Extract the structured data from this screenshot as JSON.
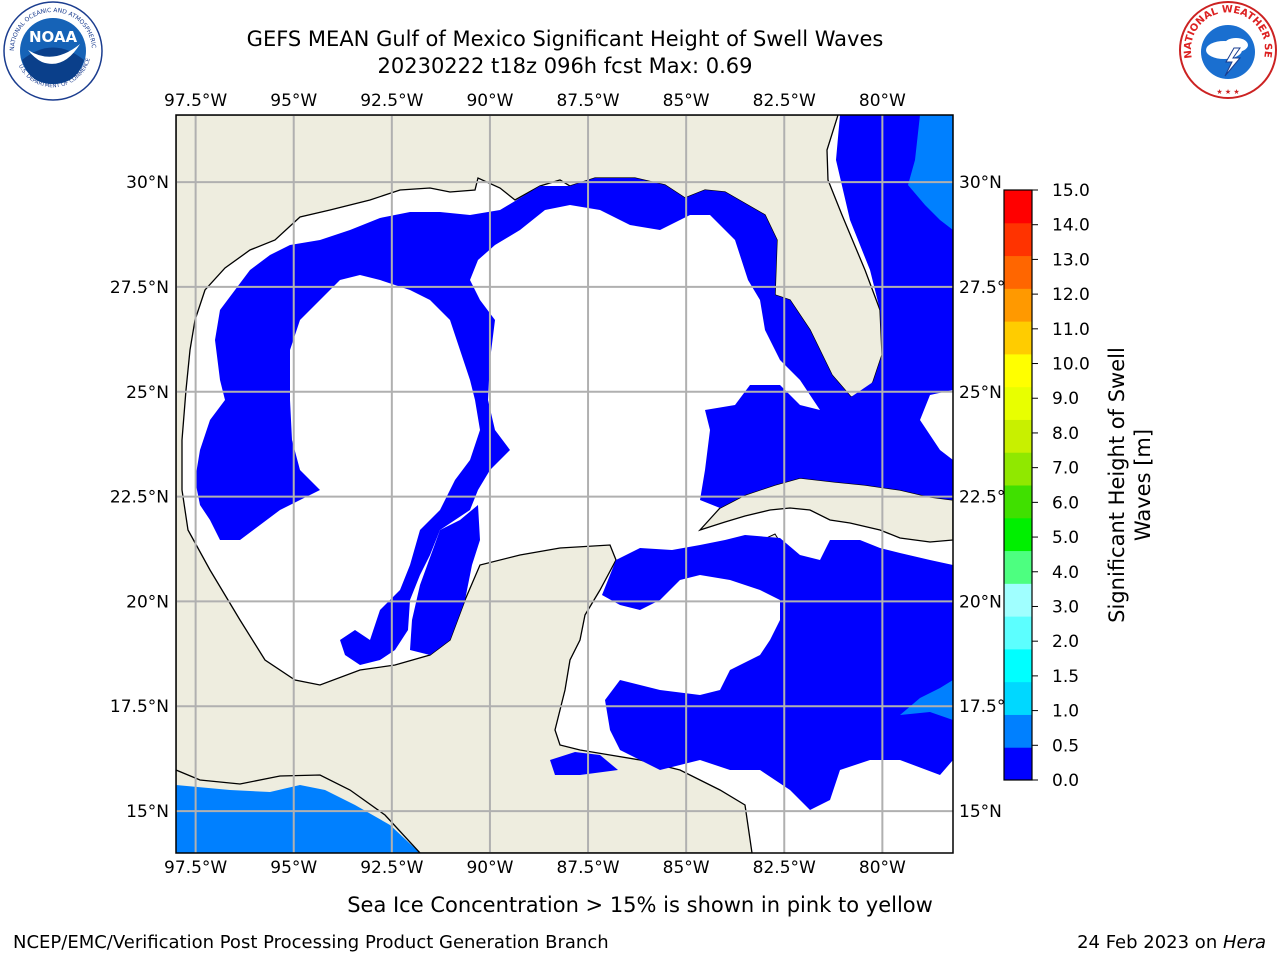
{
  "header": {
    "title_line1": "GEFS MEAN Gulf of Mexico Significant Height of Swell Waves",
    "title_line2": "20230222 t18z 096h fcst   Max: 0.69"
  },
  "logos": {
    "left": "NOAA",
    "left_ring_text": "NATIONAL OCEANIC AND ATMOSPHERIC ADMINISTRATION",
    "left_ring_text_bottom": "U.S. DEPARTMENT OF COMMERCE",
    "right_ring_text": "NATIONAL WEATHER SERVICE"
  },
  "map": {
    "lon_labels_top": [
      "97.5°W",
      "95°W",
      "92.5°W",
      "90°W",
      "87.5°W",
      "85°W",
      "82.5°W",
      "80°W"
    ],
    "lon_labels_bottom": [
      "97.5°W",
      "95°W",
      "92.5°W",
      "90°W",
      "87.5°W",
      "85°W",
      "82.5°W",
      "80°W"
    ],
    "lat_labels_left": [
      "30°N",
      "27.5°N",
      "25°N",
      "22.5°N",
      "20°N",
      "17.5°N",
      "15°N"
    ],
    "lat_labels_right": [
      "30°N",
      "27.5°N",
      "25°N",
      "22.5°N",
      "20°N",
      "17.5°N",
      "15°N"
    ],
    "lons": [
      -97.5,
      -95,
      -92.5,
      -90,
      -87.5,
      -85,
      -82.5,
      -80
    ],
    "lats": [
      30,
      27.5,
      25,
      22.5,
      20,
      17.5,
      15
    ],
    "lon_range": [
      -98,
      -78.2
    ],
    "lat_range": [
      14,
      31.6
    ],
    "colors": {
      "land": "#eeeddf",
      "swell_0_05": "#0000ff",
      "swell_05_1": "#0080ff",
      "no_data": "#ffffff",
      "grid": "#b0b0b0"
    }
  },
  "colorbar": {
    "label_line1": "Significant Height of Swell",
    "label_line2": "Waves [m]",
    "ticks": [
      "0.0",
      "0.5",
      "1.0",
      "1.5",
      "2.0",
      "3.0",
      "4.0",
      "5.0",
      "6.0",
      "7.0",
      "8.0",
      "9.0",
      "10.0",
      "11.0",
      "12.0",
      "13.0",
      "14.0",
      "15.0"
    ],
    "colors": [
      "#0000ff",
      "#0080ff",
      "#00d8ff",
      "#00ffff",
      "#5cffff",
      "#a0ffff",
      "#4dff80",
      "#00f000",
      "#40e000",
      "#90e800",
      "#c8f000",
      "#e8ff00",
      "#ffff00",
      "#ffcc00",
      "#ff9900",
      "#ff6600",
      "#ff3300",
      "#ff0000"
    ]
  },
  "note": "Sea Ice Concentration > 15% is shown in pink to yellow",
  "footer": {
    "left": "NCEP/EMC/Verification Post Processing Product Generation Branch",
    "right_date": "24 Feb 2023 on ",
    "right_machine": "Hera"
  }
}
